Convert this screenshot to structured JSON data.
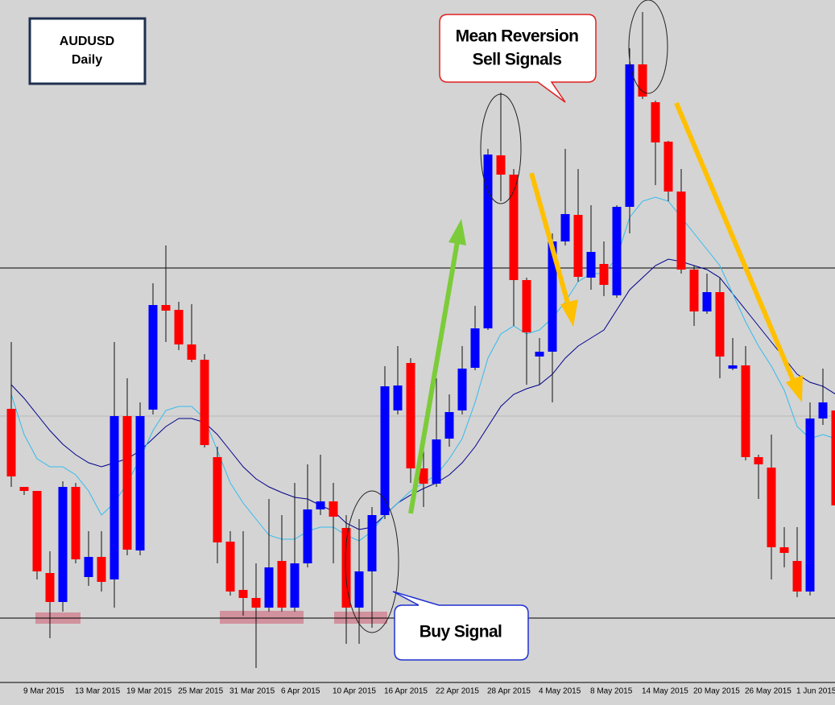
{
  "chart_data": {
    "type": "candlestick",
    "title": "AUDUSD",
    "subtitle": "Daily",
    "annotations": [
      "Mean Reversion",
      "Sell Signals",
      "Buy Signal"
    ],
    "up_color": "#0000ff",
    "down_color": "#ff0000",
    "ylim": [
      0.74,
      0.825
    ],
    "categories": [
      null,
      "9 Mar 2015",
      null,
      null,
      null,
      "13 Mar 2015",
      null,
      null,
      null,
      "19 Mar 2015",
      null,
      null,
      null,
      "25 Mar 2015",
      null,
      null,
      null,
      "31 Mar 2015",
      null,
      null,
      null,
      "6 Apr 2015",
      null,
      null,
      null,
      "10 Apr 2015",
      null,
      null,
      null,
      "16 Apr 2015",
      null,
      null,
      null,
      "22 Apr 2015",
      null,
      null,
      null,
      "28 Apr 2015",
      null,
      null,
      null,
      "4 May 2015",
      null,
      null,
      null,
      "8 May 2015",
      null,
      null,
      null,
      "14 May 2015",
      null,
      null,
      null,
      "20 May 2015",
      null,
      null,
      null,
      "26 May 2015",
      null,
      null,
      null,
      "1 Jun 2015",
      null,
      null,
      null
    ],
    "open": [
      0.7742,
      0.7645,
      0.764,
      0.7538,
      0.7502,
      0.7645,
      0.7533,
      0.7558,
      0.753,
      0.7733,
      0.7566,
      0.7741,
      0.7871,
      0.7865,
      0.7822,
      0.7803,
      0.7682,
      0.7577,
      0.7517,
      0.7507,
      0.7495,
      0.7553,
      0.7495,
      0.755,
      0.7617,
      0.7627,
      0.7594,
      0.7495,
      0.754,
      0.761,
      0.774,
      0.7799,
      0.7668,
      0.7649,
      0.7705,
      0.774,
      0.7793,
      0.7842,
      0.8057,
      0.8033,
      0.7902,
      0.7807,
      0.7813,
      0.795,
      0.7983,
      0.7905,
      0.7922,
      0.7883,
      0.7993,
      0.817,
      0.8123,
      0.8074,
      0.8012,
      0.7915,
      0.7863,
      0.7887,
      0.7792,
      0.7796,
      0.7682,
      0.7669,
      0.757,
      0.7553,
      0.7515,
      0.773,
      0.774
    ],
    "high": [
      0.7825,
      0.7645,
      0.764,
      0.7565,
      0.7652,
      0.765,
      0.759,
      0.759,
      0.7825,
      0.778,
      0.775,
      0.7898,
      0.7945,
      0.7875,
      0.7872,
      0.781,
      0.7695,
      0.759,
      0.759,
      0.755,
      0.763,
      0.761,
      0.765,
      0.7673,
      0.7685,
      0.765,
      0.761,
      0.7605,
      0.762,
      0.7795,
      0.782,
      0.7805,
      0.769,
      0.778,
      0.776,
      0.782,
      0.787,
      0.8065,
      0.8135,
      0.804,
      0.7905,
      0.783,
      0.796,
      0.8065,
      0.804,
      0.7995,
      0.795,
      0.7995,
      0.819,
      0.8235,
      0.8125,
      0.8075,
      0.804,
      0.792,
      0.791,
      0.7905,
      0.783,
      0.782,
      0.7685,
      0.771,
      0.7595,
      0.7595,
      0.775,
      0.7792,
      0.776
    ],
    "low": [
      0.7645,
      0.7635,
      0.753,
      0.7457,
      0.749,
      0.755,
      0.7522,
      0.7515,
      0.7495,
      0.756,
      0.756,
      0.7735,
      0.7825,
      0.7815,
      0.78,
      0.7694,
      0.755,
      0.751,
      0.7485,
      0.742,
      0.749,
      0.749,
      0.749,
      0.7545,
      0.761,
      0.755,
      0.745,
      0.745,
      0.747,
      0.7605,
      0.7735,
      0.765,
      0.762,
      0.7645,
      0.7695,
      0.7735,
      0.779,
      0.784,
      0.8,
      0.7845,
      0.7772,
      0.7772,
      0.775,
      0.7945,
      0.79,
      0.789,
      0.7882,
      0.788,
      0.796,
      0.8127,
      0.802,
      0.8,
      0.791,
      0.7845,
      0.786,
      0.778,
      0.779,
      0.7678,
      0.763,
      0.753,
      0.7545,
      0.7508,
      0.751,
      0.7722,
      0.761
    ],
    "close": [
      0.7658,
      0.764,
      0.754,
      0.7502,
      0.7645,
      0.7555,
      0.7558,
      0.7527,
      0.7733,
      0.7567,
      0.7733,
      0.7871,
      0.7864,
      0.7822,
      0.7803,
      0.7697,
      0.7576,
      0.7515,
      0.7507,
      0.7495,
      0.7545,
      0.7495,
      0.755,
      0.7617,
      0.7627,
      0.7608,
      0.7495,
      0.754,
      0.761,
      0.777,
      0.7771,
      0.7668,
      0.7649,
      0.7704,
      0.7738,
      0.7792,
      0.7842,
      0.8058,
      0.8033,
      0.7902,
      0.7837,
      0.7813,
      0.795,
      0.7984,
      0.7906,
      0.7937,
      0.7896,
      0.7993,
      0.817,
      0.813,
      0.8073,
      0.8012,
      0.7915,
      0.7863,
      0.7887,
      0.7807,
      0.7796,
      0.7682,
      0.7673,
      0.757,
      0.7563,
      0.7515,
      0.773,
      0.775,
      0.7622
    ],
    "lines": [
      {
        "color": "#00008b",
        "values": [
          0.7772,
          0.7755,
          0.7735,
          0.7715,
          0.7698,
          0.7685,
          0.7675,
          0.767,
          0.7675,
          0.768,
          0.769,
          0.7705,
          0.772,
          0.773,
          0.773,
          0.7725,
          0.771,
          0.769,
          0.767,
          0.7655,
          0.7645,
          0.7638,
          0.7632,
          0.763,
          0.7622,
          0.7615,
          0.76,
          0.7592,
          0.7595,
          0.761,
          0.7625,
          0.7635,
          0.7643,
          0.765,
          0.766,
          0.7675,
          0.7695,
          0.772,
          0.7745,
          0.776,
          0.7767,
          0.7772,
          0.7785,
          0.7805,
          0.782,
          0.783,
          0.784,
          0.7865,
          0.789,
          0.7905,
          0.792,
          0.7928,
          0.7925,
          0.792,
          0.7915,
          0.7905,
          0.7885,
          0.7865,
          0.7845,
          0.7825,
          0.7805,
          0.7785,
          0.7775,
          0.777,
          0.776
        ]
      },
      {
        "color": "#33bbee",
        "values": [
          0.776,
          0.771,
          0.768,
          0.767,
          0.767,
          0.766,
          0.764,
          0.761,
          0.7625,
          0.765,
          0.768,
          0.7715,
          0.774,
          0.7745,
          0.7745,
          0.773,
          0.769,
          0.765,
          0.7625,
          0.7605,
          0.7585,
          0.758,
          0.758,
          0.759,
          0.7595,
          0.7595,
          0.7585,
          0.7578,
          0.759,
          0.761,
          0.7625,
          0.764,
          0.765,
          0.766,
          0.768,
          0.7705,
          0.775,
          0.7805,
          0.7835,
          0.7845,
          0.7835,
          0.784,
          0.7855,
          0.7875,
          0.79,
          0.791,
          0.791,
          0.793,
          0.798,
          0.8,
          0.8005,
          0.8,
          0.798,
          0.796,
          0.794,
          0.792,
          0.7885,
          0.785,
          0.782,
          0.7795,
          0.7765,
          0.772,
          0.7705,
          0.771,
          0.7705
        ]
      }
    ],
    "hlines": [
      {
        "value": 0.7917,
        "color": "#000000"
      },
      {
        "value": 0.7733,
        "color": "#b8b8b8"
      },
      {
        "value": 0.7482,
        "color": "#000000"
      }
    ]
  }
}
